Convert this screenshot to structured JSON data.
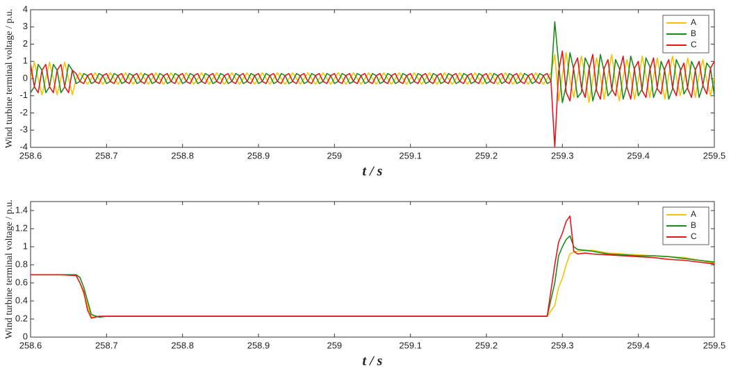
{
  "chart_data": [
    {
      "type": "line",
      "ylabel": "Wind turbine terminal voltage / p.u.",
      "xlabel": "t / s",
      "xlim": [
        258.6,
        259.5
      ],
      "xticks": [
        258.6,
        258.7,
        258.8,
        258.9,
        259,
        259.1,
        259.2,
        259.3,
        259.4,
        259.5
      ],
      "ylim": [
        -4,
        4
      ],
      "yticks": [
        -4,
        -3,
        -2,
        -1,
        0,
        1,
        2,
        3,
        4
      ],
      "legend": "upper right",
      "x": [
        258.6,
        258.605,
        258.61,
        258.615,
        258.62,
        258.625,
        258.63,
        258.635,
        258.64,
        258.645,
        258.65,
        258.655,
        258.66,
        258.665,
        258.67,
        258.675,
        258.68,
        258.685,
        258.69,
        258.695,
        258.7,
        258.705,
        258.71,
        258.715,
        258.72,
        258.725,
        258.73,
        258.735,
        258.74,
        258.745,
        258.75,
        258.755,
        258.76,
        258.765,
        258.77,
        258.775,
        258.78,
        258.785,
        258.79,
        258.795,
        258.8,
        258.805,
        258.81,
        258.815,
        258.82,
        258.825,
        258.83,
        258.835,
        258.84,
        258.845,
        258.85,
        258.855,
        258.86,
        258.865,
        258.87,
        258.875,
        258.88,
        258.885,
        258.89,
        258.895,
        258.9,
        258.905,
        258.91,
        258.915,
        258.92,
        258.925,
        258.93,
        258.935,
        258.94,
        258.945,
        258.95,
        258.955,
        258.96,
        258.965,
        258.97,
        258.975,
        258.98,
        258.985,
        258.99,
        258.995,
        259,
        259.005,
        259.01,
        259.015,
        259.02,
        259.025,
        259.03,
        259.035,
        259.04,
        259.045,
        259.05,
        259.055,
        259.06,
        259.065,
        259.07,
        259.075,
        259.08,
        259.085,
        259.09,
        259.095,
        259.1,
        259.105,
        259.11,
        259.115,
        259.12,
        259.125,
        259.13,
        259.135,
        259.14,
        259.145,
        259.15,
        259.155,
        259.16,
        259.165,
        259.17,
        259.175,
        259.18,
        259.185,
        259.19,
        259.195,
        259.2,
        259.205,
        259.21,
        259.215,
        259.22,
        259.225,
        259.23,
        259.235,
        259.24,
        259.245,
        259.25,
        259.255,
        259.26,
        259.265,
        259.27,
        259.275,
        259.28,
        259.285,
        259.29,
        259.295,
        259.3,
        259.305,
        259.31,
        259.315,
        259.32,
        259.325,
        259.33,
        259.335,
        259.34,
        259.345,
        259.35,
        259.355,
        259.36,
        259.365,
        259.37,
        259.375,
        259.38,
        259.385,
        259.39,
        259.395,
        259.4,
        259.405,
        259.41,
        259.415,
        259.42,
        259.425,
        259.43,
        259.435,
        259.44,
        259.445,
        259.45,
        259.455,
        259.46,
        259.465,
        259.47,
        259.475,
        259.48,
        259.485,
        259.49,
        259.495,
        259.5
      ],
      "series": [
        {
          "name": "A",
          "color": "#f5c400",
          "values": [
            0,
            0.95,
            0,
            -0.95,
            0,
            0.95,
            0,
            -0.95,
            0,
            0.95,
            0,
            -0.95,
            0,
            0.33,
            0,
            -0.33,
            0,
            0.33,
            0,
            -0.33,
            0,
            0.33,
            0,
            -0.33,
            0,
            0.33,
            0,
            -0.33,
            0,
            0.33,
            0,
            -0.33,
            0,
            0.33,
            0,
            -0.33,
            0,
            0.33,
            0,
            -0.33,
            0,
            0.33,
            0,
            -0.33,
            0,
            0.33,
            0,
            -0.33,
            0,
            0.33,
            0,
            -0.33,
            0,
            0.33,
            0,
            -0.33,
            0,
            0.33,
            0,
            -0.33,
            0,
            0.33,
            0,
            -0.33,
            0,
            0.33,
            0,
            -0.33,
            0,
            0.33,
            0,
            -0.33,
            0,
            0.33,
            0,
            -0.33,
            0,
            0.33,
            0,
            -0.33,
            0,
            0.33,
            0,
            -0.33,
            0,
            0.33,
            0,
            -0.33,
            0,
            0.33,
            0,
            -0.33,
            0,
            0.33,
            0,
            -0.33,
            0,
            0.33,
            0,
            -0.33,
            0,
            0.33,
            0,
            -0.33,
            0,
            0.33,
            0,
            -0.33,
            0,
            0.33,
            0,
            -0.33,
            0,
            0.33,
            0,
            -0.33,
            0,
            0.33,
            0,
            -0.33,
            0,
            0.33,
            0,
            -0.33,
            0,
            0.33,
            0,
            -0.33,
            0,
            0.33,
            0,
            -0.33,
            0,
            0.33,
            0,
            -0.33,
            0,
            0.33,
            1.4,
            -1.3,
            0.2,
            1.5,
            -0.1,
            -1.1,
            0.1,
            1.3,
            0.2,
            -1.4,
            -0.1,
            1.2,
            0.1,
            -1.2,
            0.2,
            1.4,
            -0.2,
            -1.3,
            0.1,
            1.1,
            0.1,
            -1.2,
            -0.1,
            1.3,
            0.2,
            -1.1,
            0.1,
            1.2,
            -0.1,
            -1.2,
            0.2,
            1.3,
            0.1,
            -1.0,
            -0.1,
            1.2,
            0.1,
            -1.1,
            0.2,
            1.1,
            -0.1,
            -1.0,
            0.1
          ]
        },
        {
          "name": "B",
          "color": "#1a8a1a",
          "values": [
            -0.82,
            -0.48,
            0.82,
            0.48,
            -0.82,
            -0.48,
            0.82,
            0.48,
            -0.82,
            -0.48,
            0.82,
            0.48,
            -0.29,
            -0.17,
            0.29,
            0.17,
            -0.29,
            -0.17,
            0.29,
            0.17,
            -0.29,
            -0.17,
            0.29,
            0.17,
            -0.29,
            -0.17,
            0.29,
            0.17,
            -0.29,
            -0.17,
            0.29,
            0.17,
            -0.29,
            -0.17,
            0.29,
            0.17,
            -0.29,
            -0.17,
            0.29,
            0.17,
            -0.29,
            -0.17,
            0.29,
            0.17,
            -0.29,
            -0.17,
            0.29,
            0.17,
            -0.29,
            -0.17,
            0.29,
            0.17,
            -0.29,
            -0.17,
            0.29,
            0.17,
            -0.29,
            -0.17,
            0.29,
            0.17,
            -0.29,
            -0.17,
            0.29,
            0.17,
            -0.29,
            -0.17,
            0.29,
            0.17,
            -0.29,
            -0.17,
            0.29,
            0.17,
            -0.29,
            -0.17,
            0.29,
            0.17,
            -0.29,
            -0.17,
            0.29,
            0.17,
            -0.29,
            -0.17,
            0.29,
            0.17,
            -0.29,
            -0.17,
            0.29,
            0.17,
            -0.29,
            -0.17,
            0.29,
            0.17,
            -0.29,
            -0.17,
            0.29,
            0.17,
            -0.29,
            -0.17,
            0.29,
            0.17,
            -0.29,
            -0.17,
            0.29,
            0.17,
            -0.29,
            -0.17,
            0.29,
            0.17,
            -0.29,
            -0.17,
            0.29,
            0.17,
            -0.29,
            -0.17,
            0.29,
            0.17,
            -0.29,
            -0.17,
            0.29,
            0.17,
            -0.29,
            -0.17,
            0.29,
            0.17,
            -0.29,
            -0.17,
            0.29,
            0.17,
            -0.29,
            -0.17,
            0.29,
            0.17,
            -0.29,
            -0.17,
            0.29,
            0.17,
            -0.29,
            -0.17,
            3.3,
            0.9,
            -1.4,
            -0.4,
            1.5,
            0.5,
            -1.1,
            -0.8,
            1.2,
            0.7,
            -1.3,
            -0.5,
            1.4,
            0.4,
            -1.0,
            -0.7,
            1.1,
            0.6,
            -1.2,
            -0.4,
            1.3,
            0.5,
            -1.0,
            -0.6,
            1.2,
            0.7,
            -1.1,
            -0.5,
            1.0,
            0.4,
            -1.2,
            -0.6,
            1.1,
            0.6,
            -0.9,
            -0.5,
            1.0,
            0.5,
            -1.1,
            -0.4,
            0.9,
            0.6,
            -1.0
          ]
        },
        {
          "name": "C",
          "color": "#e8141a",
          "values": [
            0.82,
            -0.48,
            -0.82,
            0.48,
            0.82,
            -0.48,
            -0.82,
            0.48,
            0.82,
            -0.48,
            -0.82,
            0.48,
            0.29,
            -0.17,
            -0.29,
            0.17,
            0.29,
            -0.17,
            -0.29,
            0.17,
            0.29,
            -0.17,
            -0.29,
            0.17,
            0.29,
            -0.17,
            -0.29,
            0.17,
            0.29,
            -0.17,
            -0.29,
            0.17,
            0.29,
            -0.17,
            -0.29,
            0.17,
            0.29,
            -0.17,
            -0.29,
            0.17,
            0.29,
            -0.17,
            -0.29,
            0.17,
            0.29,
            -0.17,
            -0.29,
            0.17,
            0.29,
            -0.17,
            -0.29,
            0.17,
            0.29,
            -0.17,
            -0.29,
            0.17,
            0.29,
            -0.17,
            -0.29,
            0.17,
            0.29,
            -0.17,
            -0.29,
            0.17,
            0.29,
            -0.17,
            -0.29,
            0.17,
            0.29,
            -0.17,
            -0.29,
            0.17,
            0.29,
            -0.17,
            -0.29,
            0.17,
            0.29,
            -0.17,
            -0.29,
            0.17,
            0.29,
            -0.17,
            -0.29,
            0.17,
            0.29,
            -0.17,
            -0.29,
            0.17,
            0.29,
            -0.17,
            -0.29,
            0.17,
            0.29,
            -0.17,
            -0.29,
            0.17,
            0.29,
            -0.17,
            -0.29,
            0.17,
            0.29,
            -0.17,
            -0.29,
            0.17,
            0.29,
            -0.17,
            -0.29,
            0.17,
            0.29,
            -0.17,
            -0.29,
            0.17,
            0.29,
            -0.17,
            -0.29,
            0.17,
            0.29,
            -0.17,
            -0.29,
            0.17,
            0.29,
            -0.17,
            -0.29,
            0.17,
            0.29,
            -0.17,
            -0.29,
            0.17,
            0.29,
            -0.17,
            -0.29,
            0.17,
            0.29,
            -0.17,
            -0.29,
            0.17,
            0.29,
            -0.17,
            -4,
            0.4,
            1.6,
            -0.8,
            -1.3,
            0.7,
            1.2,
            -0.5,
            -1.1,
            0.5,
            1.4,
            -0.7,
            -1.2,
            0.6,
            1.1,
            -0.6,
            -1.0,
            0.4,
            1.3,
            -0.5,
            -1.2,
            0.6,
            1.0,
            -0.7,
            -1.1,
            0.5,
            1.2,
            -0.6,
            -0.9,
            0.6,
            1.1,
            -0.5,
            -1.0,
            0.4,
            0.9,
            -0.6,
            -1.1,
            0.5,
            1.0,
            -0.4,
            -0.9,
            0.6,
            1.0
          ]
        }
      ]
    },
    {
      "type": "line",
      "ylabel": "Wind turbine terminal voltage / p.u.",
      "xlabel": "t / s",
      "xlim": [
        258.6,
        259.5
      ],
      "xticks": [
        258.6,
        258.7,
        258.8,
        258.9,
        259,
        259.1,
        259.2,
        259.3,
        259.4,
        259.5
      ],
      "ylim": [
        0,
        1.5
      ],
      "yticks": [
        0,
        0.2,
        0.4,
        0.6,
        0.8,
        1,
        1.2,
        1.4
      ],
      "legend": "upper right",
      "x": [
        258.6,
        258.62,
        258.64,
        258.66,
        258.665,
        258.67,
        258.675,
        258.68,
        258.69,
        258.7,
        258.75,
        258.8,
        258.85,
        258.9,
        258.95,
        259,
        259.05,
        259.1,
        259.15,
        259.2,
        259.25,
        259.28,
        259.29,
        259.295,
        259.3,
        259.305,
        259.31,
        259.315,
        259.32,
        259.33,
        259.34,
        259.36,
        259.38,
        259.4,
        259.42,
        259.44,
        259.46,
        259.48,
        259.5
      ],
      "series": [
        {
          "name": "A",
          "color": "#f5c400",
          "values": [
            0.69,
            0.69,
            0.69,
            0.69,
            0.6,
            0.48,
            0.35,
            0.22,
            0.23,
            0.23,
            0.23,
            0.23,
            0.23,
            0.23,
            0.23,
            0.23,
            0.23,
            0.23,
            0.23,
            0.23,
            0.23,
            0.23,
            0.35,
            0.55,
            0.65,
            0.8,
            0.92,
            0.94,
            0.95,
            0.96,
            0.96,
            0.93,
            0.92,
            0.91,
            0.9,
            0.89,
            0.88,
            0.85,
            0.82
          ]
        },
        {
          "name": "B",
          "color": "#1a8a1a",
          "values": [
            0.69,
            0.69,
            0.69,
            0.69,
            0.66,
            0.55,
            0.4,
            0.25,
            0.22,
            0.23,
            0.23,
            0.23,
            0.23,
            0.23,
            0.23,
            0.23,
            0.23,
            0.23,
            0.23,
            0.23,
            0.23,
            0.23,
            0.6,
            0.9,
            1.0,
            1.08,
            1.12,
            1.0,
            0.97,
            0.96,
            0.95,
            0.92,
            0.91,
            0.9,
            0.9,
            0.89,
            0.87,
            0.85,
            0.83
          ]
        },
        {
          "name": "C",
          "color": "#e8141a",
          "values": [
            0.69,
            0.69,
            0.69,
            0.68,
            0.6,
            0.5,
            0.3,
            0.21,
            0.23,
            0.23,
            0.23,
            0.23,
            0.23,
            0.23,
            0.23,
            0.23,
            0.23,
            0.23,
            0.23,
            0.23,
            0.23,
            0.23,
            0.8,
            1.05,
            1.15,
            1.28,
            1.34,
            0.95,
            0.92,
            0.93,
            0.92,
            0.91,
            0.9,
            0.89,
            0.88,
            0.86,
            0.85,
            0.83,
            0.81
          ]
        }
      ]
    }
  ]
}
